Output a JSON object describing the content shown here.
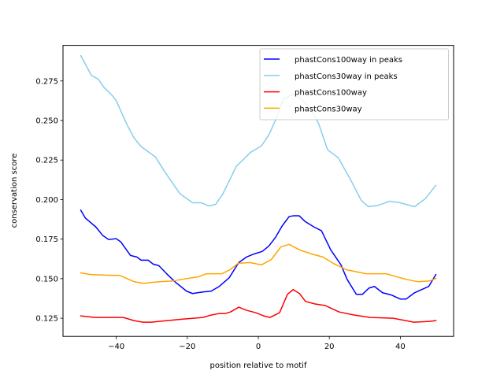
{
  "chart_data": {
    "type": "line",
    "title": "",
    "xlabel": "position relative to motif",
    "ylabel": "conservation score",
    "xlim": [
      -55,
      55
    ],
    "ylim": [
      0.1135,
      0.2975
    ],
    "xticks": [
      -40,
      -20,
      0,
      20,
      40
    ],
    "xtick_labels": [
      "−40",
      "−20",
      "0",
      "20",
      "40"
    ],
    "yticks": [
      0.125,
      0.15,
      0.175,
      0.2,
      0.225,
      0.25,
      0.275
    ],
    "ytick_labels": [
      "0.125",
      "0.150",
      "0.175",
      "0.200",
      "0.225",
      "0.250",
      "0.275"
    ],
    "grid": false,
    "legend_position": "top-right",
    "series": [
      {
        "name": "phastCons100way in peaks",
        "color": "#0000ff",
        "x": [
          -50,
          -48.7,
          -45.8,
          -43.8,
          -42.2,
          -40,
          -38.7,
          -36,
          -34.2,
          -33,
          -31,
          -29.6,
          -28,
          -25.8,
          -23.5,
          -20.2,
          -18.5,
          -15.6,
          -13.3,
          -11,
          -8.2,
          -5.5,
          -3.3,
          -1.1,
          1.1,
          3,
          4.9,
          6.7,
          8.7,
          10,
          11.5,
          13.1,
          15.6,
          17.8,
          20.4,
          23.3,
          25,
          27.6,
          29.3,
          31.2,
          32.7,
          35,
          37.6,
          40,
          41.6,
          44,
          48,
          50
        ],
        "y": [
          0.1933,
          0.1883,
          0.1828,
          0.1773,
          0.1748,
          0.1753,
          0.1732,
          0.1647,
          0.1637,
          0.1617,
          0.1617,
          0.1592,
          0.1582,
          0.1531,
          0.1481,
          0.1421,
          0.1406,
          0.1416,
          0.1421,
          0.1451,
          0.1506,
          0.1602,
          0.1637,
          0.1657,
          0.1672,
          0.1707,
          0.1763,
          0.1833,
          0.1893,
          0.1898,
          0.1898,
          0.1863,
          0.1828,
          0.1803,
          0.1682,
          0.1587,
          0.1496,
          0.1401,
          0.1401,
          0.1441,
          0.1451,
          0.1411,
          0.1396,
          0.1371,
          0.1371,
          0.1411,
          0.1451,
          0.1526
        ]
      },
      {
        "name": "phastCons30way in peaks",
        "color": "#87ceeb",
        "x": [
          -50,
          -47,
          -45,
          -43.5,
          -41,
          -40,
          -37,
          -35,
          -33,
          -29,
          -26,
          -22,
          -21,
          -18.5,
          -16,
          -14,
          -12,
          -10,
          -6.2,
          -2.2,
          0.9,
          3,
          5.3,
          7,
          9.8,
          12,
          15,
          17,
          19.5,
          22.5,
          26,
          29,
          31,
          34,
          37,
          40,
          44,
          47,
          50
        ],
        "y": [
          0.291,
          0.2785,
          0.276,
          0.271,
          0.2655,
          0.2625,
          0.2475,
          0.239,
          0.2335,
          0.227,
          0.2165,
          0.2035,
          0.202,
          0.198,
          0.198,
          0.196,
          0.197,
          0.2035,
          0.221,
          0.2298,
          0.234,
          0.241,
          0.2525,
          0.2635,
          0.2665,
          0.264,
          0.256,
          0.248,
          0.2315,
          0.2265,
          0.2125,
          0.1995,
          0.1955,
          0.1965,
          0.199,
          0.198,
          0.1955,
          0.2005,
          0.209
        ]
      },
      {
        "name": "phastCons100way",
        "color": "#ff0000",
        "x": [
          -50,
          -46,
          -38,
          -35,
          -32.5,
          -30,
          -28,
          -21,
          -15.6,
          -13.3,
          -11,
          -9.3,
          -7.8,
          -5.5,
          -3.3,
          -0.7,
          1.5,
          3.3,
          6,
          8.2,
          9.8,
          11.6,
          13.3,
          16,
          18.9,
          22.7,
          27.1,
          31.6,
          38,
          43.8,
          48.2,
          50
        ],
        "y": [
          0.1265,
          0.1255,
          0.1255,
          0.1235,
          0.1225,
          0.1225,
          0.123,
          0.1245,
          0.1255,
          0.127,
          0.128,
          0.128,
          0.129,
          0.132,
          0.13,
          0.1285,
          0.1265,
          0.1255,
          0.1285,
          0.1401,
          0.1431,
          0.1406,
          0.1356,
          0.134,
          0.133,
          0.129,
          0.127,
          0.1255,
          0.125,
          0.1225,
          0.123,
          0.1235
        ]
      },
      {
        "name": "phastCons30way",
        "color": "#ffa500",
        "x": [
          -50,
          -47.3,
          -41.7,
          -39,
          -37,
          -35,
          -32.3,
          -28,
          -23.8,
          -21.5,
          -17,
          -14.7,
          -10.3,
          -8,
          -5.7,
          -2.4,
          0.9,
          3.7,
          6.4,
          8.7,
          11.6,
          14.9,
          18.2,
          21.1,
          24.9,
          30.4,
          36,
          41.6,
          44.9,
          48.2,
          50
        ],
        "y": [
          0.1536,
          0.1526,
          0.1521,
          0.1521,
          0.1501,
          0.1481,
          0.1471,
          0.1481,
          0.1486,
          0.1496,
          0.1511,
          0.1531,
          0.1531,
          0.1556,
          0.1597,
          0.1602,
          0.1587,
          0.1622,
          0.1702,
          0.1717,
          0.1682,
          0.1657,
          0.1637,
          0.1597,
          0.1556,
          0.1531,
          0.1531,
          0.1496,
          0.1481,
          0.1486,
          0.1501
        ]
      }
    ]
  }
}
